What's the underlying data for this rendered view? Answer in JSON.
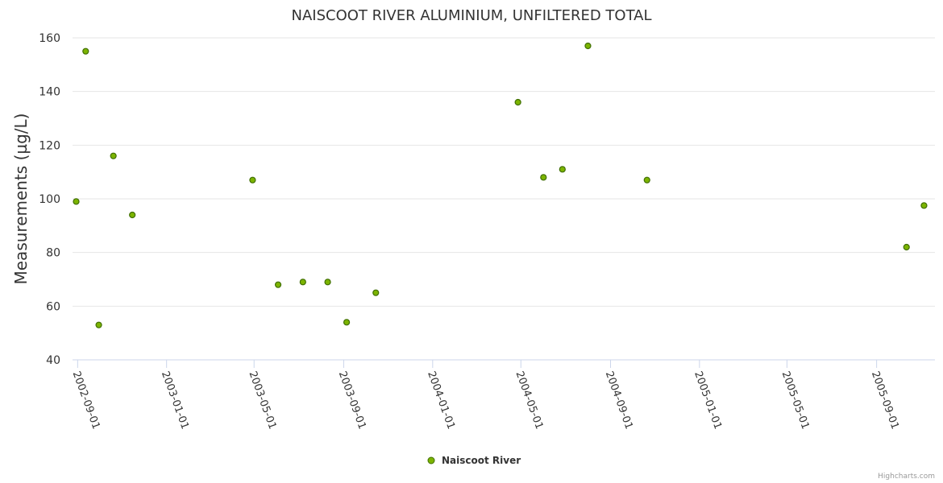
{
  "chart_data": {
    "type": "scatter",
    "title": "NAISCOOT RIVER ALUMINIUM, UNFILTERED TOTAL",
    "xlabel": "",
    "ylabel": "Measurements (µg/L)",
    "ylim": [
      40,
      160
    ],
    "yticks": [
      40,
      60,
      80,
      100,
      120,
      140,
      160
    ],
    "xlim": [
      "2002-08-25",
      "2005-11-20"
    ],
    "xticks": [
      "2002-09-01",
      "2003-01-01",
      "2003-05-01",
      "2003-09-01",
      "2004-01-01",
      "2004-05-01",
      "2004-09-01",
      "2005-01-01",
      "2005-05-01",
      "2005-09-01"
    ],
    "grid": true,
    "series": [
      {
        "name": "Naiscoot River",
        "color": "#7cb400",
        "stroke": "#3f6e00",
        "points": [
          {
            "x": "2002-08-30",
            "y": 99
          },
          {
            "x": "2002-09-12",
            "y": 155
          },
          {
            "x": "2002-09-30",
            "y": 53
          },
          {
            "x": "2002-10-20",
            "y": 116
          },
          {
            "x": "2002-11-15",
            "y": 94
          },
          {
            "x": "2003-04-29",
            "y": 107
          },
          {
            "x": "2003-06-03",
            "y": 68
          },
          {
            "x": "2003-07-07",
            "y": 69
          },
          {
            "x": "2003-08-10",
            "y": 69
          },
          {
            "x": "2003-09-05",
            "y": 54
          },
          {
            "x": "2003-10-15",
            "y": 65
          },
          {
            "x": "2004-04-27",
            "y": 136
          },
          {
            "x": "2004-06-01",
            "y": 108
          },
          {
            "x": "2004-06-27",
            "y": 111
          },
          {
            "x": "2004-08-01",
            "y": 157
          },
          {
            "x": "2004-10-21",
            "y": 107
          },
          {
            "x": "2005-10-12",
            "y": 82
          },
          {
            "x": "2005-11-05",
            "y": 97.5
          }
        ]
      }
    ],
    "legend": {
      "position": "bottom-center"
    },
    "credits": "Highcharts.com"
  }
}
